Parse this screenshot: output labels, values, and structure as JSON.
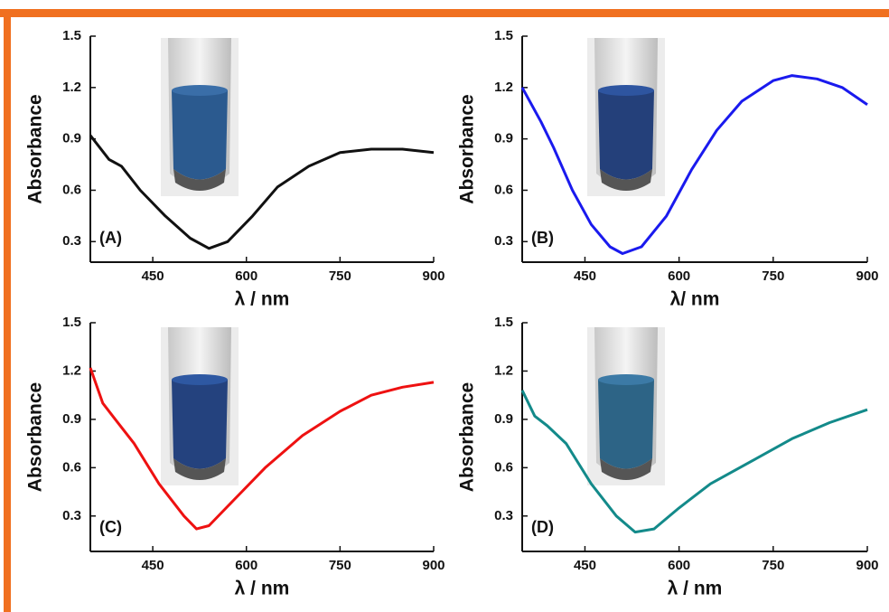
{
  "chart_data": [
    {
      "type": "line",
      "panel_label": "(A)",
      "ylabel": "Absorbance",
      "xlabel": "λ / nm",
      "color": "#111111",
      "x": [
        350,
        380,
        400,
        430,
        470,
        510,
        540,
        570,
        610,
        650,
        700,
        750,
        800,
        850,
        900
      ],
      "values": [
        0.92,
        0.78,
        0.74,
        0.6,
        0.45,
        0.32,
        0.26,
        0.3,
        0.45,
        0.62,
        0.74,
        0.82,
        0.84,
        0.84,
        0.82
      ],
      "xlim": [
        350,
        900
      ],
      "ylim": [
        0.18,
        1.5
      ],
      "xticks": [
        450,
        600,
        750,
        900
      ],
      "yticks": [
        0.3,
        0.6,
        0.9,
        1.2,
        1.5
      ]
    },
    {
      "type": "line",
      "panel_label": "(B)",
      "ylabel": "Absorbance",
      "xlabel": "λ/ nm",
      "color": "#1a1aee",
      "x": [
        350,
        380,
        400,
        430,
        460,
        490,
        510,
        540,
        580,
        620,
        660,
        700,
        750,
        780,
        820,
        860,
        900
      ],
      "values": [
        1.2,
        1.0,
        0.85,
        0.6,
        0.4,
        0.27,
        0.23,
        0.27,
        0.45,
        0.72,
        0.95,
        1.12,
        1.24,
        1.27,
        1.25,
        1.2,
        1.1
      ],
      "xlim": [
        350,
        900
      ],
      "ylim": [
        0.18,
        1.5
      ],
      "xticks": [
        450,
        600,
        750,
        900
      ],
      "yticks": [
        0.3,
        0.6,
        0.9,
        1.2,
        1.5
      ]
    },
    {
      "type": "line",
      "panel_label": "(C)",
      "ylabel": "Absorbance",
      "xlabel": "λ / nm",
      "color": "#ee1111",
      "x": [
        350,
        370,
        390,
        420,
        460,
        500,
        520,
        540,
        580,
        630,
        690,
        750,
        800,
        850,
        900
      ],
      "values": [
        1.22,
        1.0,
        0.9,
        0.75,
        0.5,
        0.3,
        0.22,
        0.24,
        0.4,
        0.6,
        0.8,
        0.95,
        1.05,
        1.1,
        1.13
      ],
      "xlim": [
        350,
        900
      ],
      "ylim": [
        0.08,
        1.5
      ],
      "xticks": [
        450,
        600,
        750,
        900
      ],
      "yticks": [
        0.3,
        0.6,
        0.9,
        1.2,
        1.5
      ]
    },
    {
      "type": "line",
      "panel_label": "(D)",
      "ylabel": "Absorbance",
      "xlabel": "λ / nm",
      "color": "#138a8a",
      "x": [
        350,
        370,
        390,
        420,
        460,
        500,
        530,
        560,
        600,
        650,
        720,
        780,
        840,
        900
      ],
      "values": [
        1.08,
        0.92,
        0.86,
        0.75,
        0.5,
        0.3,
        0.2,
        0.22,
        0.35,
        0.5,
        0.65,
        0.78,
        0.88,
        0.96
      ],
      "xlim": [
        350,
        900
      ],
      "ylim": [
        0.08,
        1.5
      ],
      "xticks": [
        450,
        600,
        750,
        900
      ],
      "yticks": [
        0.3,
        0.6,
        0.9,
        1.2,
        1.5
      ]
    }
  ]
}
